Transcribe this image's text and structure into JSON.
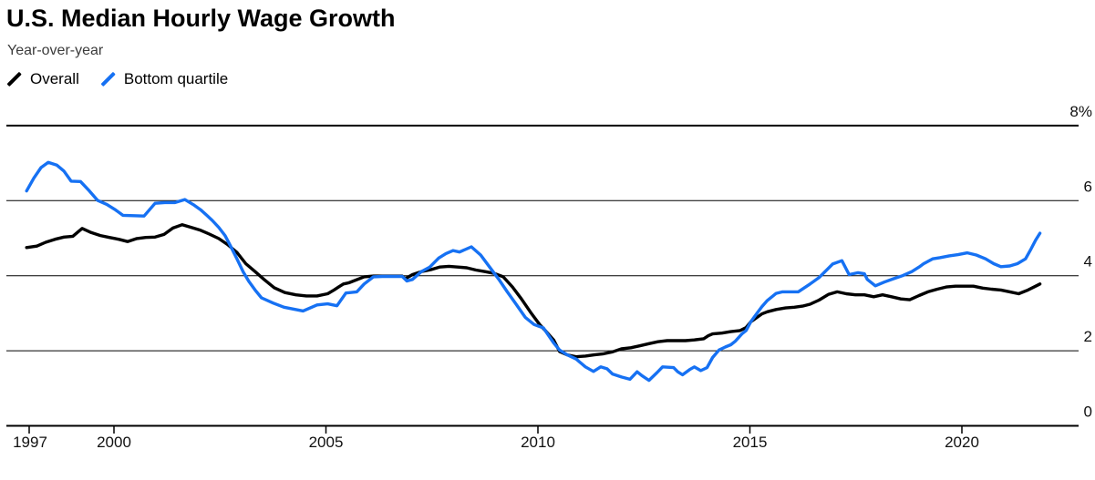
{
  "header": {
    "title": "U.S. Median Hourly Wage Growth",
    "subtitle": "Year-over-year"
  },
  "legend": [
    {
      "label": "Overall",
      "color": "#000000"
    },
    {
      "label": "Bottom quartile",
      "color": "#1671f3"
    }
  ],
  "chart_data": {
    "type": "line",
    "title": "U.S. Median Hourly Wage Growth",
    "subtitle": "Year-over-year",
    "xlabel": "",
    "ylabel": "",
    "y_unit": "%",
    "ylim": [
      0,
      8
    ],
    "x_ticks": [
      1997,
      2000,
      2005,
      2010,
      2015,
      2020
    ],
    "y_ticks": [
      0,
      2,
      4,
      6,
      8
    ],
    "y_tick_labels": [
      "0",
      "2",
      "4",
      "6",
      "8%"
    ],
    "grid": "horizontal",
    "legend_position": "top-left",
    "axis_color": "#000000",
    "series": [
      {
        "name": "Overall",
        "color": "#000000",
        "points": [
          [
            1997.94,
            4.75
          ],
          [
            1998.18,
            4.79
          ],
          [
            1998.39,
            4.89
          ],
          [
            1998.61,
            4.97
          ],
          [
            1998.82,
            5.03
          ],
          [
            1999.03,
            5.05
          ],
          [
            1999.25,
            5.26
          ],
          [
            1999.46,
            5.15
          ],
          [
            1999.68,
            5.07
          ],
          [
            1999.89,
            5.02
          ],
          [
            2000.11,
            4.97
          ],
          [
            2000.32,
            4.91
          ],
          [
            2000.54,
            4.99
          ],
          [
            2000.75,
            5.02
          ],
          [
            2000.97,
            5.03
          ],
          [
            2001.18,
            5.1
          ],
          [
            2001.39,
            5.27
          ],
          [
            2001.61,
            5.36
          ],
          [
            2001.82,
            5.29
          ],
          [
            2002.04,
            5.21
          ],
          [
            2002.25,
            5.11
          ],
          [
            2002.47,
            4.99
          ],
          [
            2002.68,
            4.83
          ],
          [
            2002.9,
            4.62
          ],
          [
            2003.11,
            4.32
          ],
          [
            2003.33,
            4.11
          ],
          [
            2003.54,
            3.9
          ],
          [
            2003.78,
            3.68
          ],
          [
            2004.03,
            3.55
          ],
          [
            2004.29,
            3.49
          ],
          [
            2004.54,
            3.46
          ],
          [
            2004.79,
            3.46
          ],
          [
            2005.04,
            3.52
          ],
          [
            2005.19,
            3.62
          ],
          [
            2005.3,
            3.7
          ],
          [
            2005.41,
            3.78
          ],
          [
            2005.54,
            3.81
          ],
          [
            2005.9,
            3.97
          ],
          [
            2006.12,
            3.99
          ],
          [
            2006.8,
            3.99
          ],
          [
            2006.87,
            3.92
          ],
          [
            2007.04,
            4.03
          ],
          [
            2007.25,
            4.11
          ],
          [
            2007.47,
            4.16
          ],
          [
            2007.68,
            4.23
          ],
          [
            2007.9,
            4.25
          ],
          [
            2008.11,
            4.23
          ],
          [
            2008.32,
            4.21
          ],
          [
            2008.54,
            4.15
          ],
          [
            2008.75,
            4.11
          ],
          [
            2008.97,
            4.06
          ],
          [
            2009.18,
            3.97
          ],
          [
            2009.4,
            3.7
          ],
          [
            2009.61,
            3.38
          ],
          [
            2009.83,
            3.02
          ],
          [
            2010.04,
            2.7
          ],
          [
            2010.19,
            2.52
          ],
          [
            2010.37,
            2.29
          ],
          [
            2010.51,
            1.98
          ],
          [
            2010.69,
            1.89
          ],
          [
            2010.9,
            1.84
          ],
          [
            2011.12,
            1.86
          ],
          [
            2011.33,
            1.89
          ],
          [
            2011.55,
            1.92
          ],
          [
            2011.76,
            1.97
          ],
          [
            2011.97,
            2.05
          ],
          [
            2012.19,
            2.08
          ],
          [
            2012.4,
            2.13
          ],
          [
            2012.62,
            2.19
          ],
          [
            2012.83,
            2.24
          ],
          [
            2013.05,
            2.27
          ],
          [
            2013.26,
            2.27
          ],
          [
            2013.48,
            2.27
          ],
          [
            2013.69,
            2.29
          ],
          [
            2013.91,
            2.32
          ],
          [
            2014.02,
            2.4
          ],
          [
            2014.12,
            2.45
          ],
          [
            2014.34,
            2.47
          ],
          [
            2014.55,
            2.51
          ],
          [
            2014.77,
            2.54
          ],
          [
            2014.91,
            2.62
          ],
          [
            2015.02,
            2.77
          ],
          [
            2015.13,
            2.86
          ],
          [
            2015.28,
            2.98
          ],
          [
            2015.41,
            3.04
          ],
          [
            2015.62,
            3.1
          ],
          [
            2015.84,
            3.14
          ],
          [
            2016.05,
            3.16
          ],
          [
            2016.24,
            3.19
          ],
          [
            2016.42,
            3.24
          ],
          [
            2016.63,
            3.35
          ],
          [
            2016.85,
            3.5
          ],
          [
            2017.06,
            3.57
          ],
          [
            2017.27,
            3.52
          ],
          [
            2017.49,
            3.49
          ],
          [
            2017.7,
            3.49
          ],
          [
            2017.92,
            3.44
          ],
          [
            2018.13,
            3.49
          ],
          [
            2018.34,
            3.44
          ],
          [
            2018.56,
            3.38
          ],
          [
            2018.77,
            3.36
          ],
          [
            2018.99,
            3.47
          ],
          [
            2019.2,
            3.57
          ],
          [
            2019.42,
            3.64
          ],
          [
            2019.63,
            3.7
          ],
          [
            2019.85,
            3.72
          ],
          [
            2020.06,
            3.72
          ],
          [
            2020.27,
            3.72
          ],
          [
            2020.49,
            3.67
          ],
          [
            2020.7,
            3.64
          ],
          [
            2020.92,
            3.62
          ],
          [
            2021.13,
            3.57
          ],
          [
            2021.34,
            3.52
          ],
          [
            2021.56,
            3.62
          ],
          [
            2021.74,
            3.72
          ],
          [
            2021.84,
            3.78
          ]
        ]
      },
      {
        "name": "Bottom quartile",
        "color": "#1671f3",
        "points": [
          [
            1997.94,
            6.26
          ],
          [
            1998.11,
            6.6
          ],
          [
            1998.28,
            6.88
          ],
          [
            1998.45,
            7.02
          ],
          [
            1998.65,
            6.95
          ],
          [
            1998.82,
            6.79
          ],
          [
            1998.99,
            6.52
          ],
          [
            1999.21,
            6.51
          ],
          [
            1999.42,
            6.26
          ],
          [
            1999.61,
            6.01
          ],
          [
            1999.83,
            5.9
          ],
          [
            2000.04,
            5.75
          ],
          [
            2000.21,
            5.61
          ],
          [
            2000.47,
            5.6
          ],
          [
            2000.71,
            5.59
          ],
          [
            2000.97,
            5.93
          ],
          [
            2001.2,
            5.95
          ],
          [
            2001.44,
            5.95
          ],
          [
            2001.67,
            6.03
          ],
          [
            2001.89,
            5.88
          ],
          [
            2002.04,
            5.76
          ],
          [
            2002.19,
            5.61
          ],
          [
            2002.32,
            5.47
          ],
          [
            2002.47,
            5.29
          ],
          [
            2002.62,
            5.07
          ],
          [
            2002.75,
            4.79
          ],
          [
            2002.9,
            4.45
          ],
          [
            2003.05,
            4.1
          ],
          [
            2003.18,
            3.85
          ],
          [
            2003.33,
            3.62
          ],
          [
            2003.48,
            3.41
          ],
          [
            2003.76,
            3.27
          ],
          [
            2004.01,
            3.16
          ],
          [
            2004.46,
            3.06
          ],
          [
            2004.79,
            3.22
          ],
          [
            2005.04,
            3.25
          ],
          [
            2005.26,
            3.2
          ],
          [
            2005.47,
            3.54
          ],
          [
            2005.73,
            3.57
          ],
          [
            2005.9,
            3.78
          ],
          [
            2006.12,
            3.97
          ],
          [
            2006.33,
            3.98
          ],
          [
            2006.8,
            3.98
          ],
          [
            2006.91,
            3.86
          ],
          [
            2007.04,
            3.9
          ],
          [
            2007.25,
            4.11
          ],
          [
            2007.45,
            4.23
          ],
          [
            2007.66,
            4.47
          ],
          [
            2007.83,
            4.59
          ],
          [
            2008.0,
            4.67
          ],
          [
            2008.15,
            4.63
          ],
          [
            2008.43,
            4.77
          ],
          [
            2008.65,
            4.55
          ],
          [
            2008.86,
            4.23
          ],
          [
            2009.08,
            3.9
          ],
          [
            2009.27,
            3.58
          ],
          [
            2009.48,
            3.25
          ],
          [
            2009.7,
            2.89
          ],
          [
            2009.91,
            2.7
          ],
          [
            2010.13,
            2.61
          ],
          [
            2010.37,
            2.21
          ],
          [
            2010.51,
            2.02
          ],
          [
            2010.69,
            1.89
          ],
          [
            2010.9,
            1.78
          ],
          [
            2011.12,
            1.57
          ],
          [
            2011.31,
            1.45
          ],
          [
            2011.48,
            1.57
          ],
          [
            2011.63,
            1.52
          ],
          [
            2011.76,
            1.38
          ],
          [
            2011.97,
            1.3
          ],
          [
            2012.17,
            1.24
          ],
          [
            2012.34,
            1.44
          ],
          [
            2012.45,
            1.34
          ],
          [
            2012.62,
            1.21
          ],
          [
            2012.81,
            1.42
          ],
          [
            2012.94,
            1.57
          ],
          [
            2013.2,
            1.55
          ],
          [
            2013.3,
            1.44
          ],
          [
            2013.41,
            1.36
          ],
          [
            2013.58,
            1.5
          ],
          [
            2013.69,
            1.57
          ],
          [
            2013.84,
            1.47
          ],
          [
            2013.99,
            1.55
          ],
          [
            2014.12,
            1.82
          ],
          [
            2014.27,
            2.02
          ],
          [
            2014.42,
            2.1
          ],
          [
            2014.55,
            2.16
          ],
          [
            2014.66,
            2.26
          ],
          [
            2014.81,
            2.45
          ],
          [
            2014.91,
            2.54
          ],
          [
            2015.02,
            2.77
          ],
          [
            2015.13,
            2.94
          ],
          [
            2015.28,
            3.17
          ],
          [
            2015.41,
            3.34
          ],
          [
            2015.52,
            3.44
          ],
          [
            2015.62,
            3.53
          ],
          [
            2015.77,
            3.57
          ],
          [
            2016.14,
            3.57
          ],
          [
            2016.42,
            3.78
          ],
          [
            2016.63,
            3.95
          ],
          [
            2016.95,
            4.31
          ],
          [
            2017.17,
            4.4
          ],
          [
            2017.34,
            4.03
          ],
          [
            2017.55,
            4.08
          ],
          [
            2017.7,
            4.05
          ],
          [
            2017.77,
            3.9
          ],
          [
            2017.96,
            3.73
          ],
          [
            2018.17,
            3.83
          ],
          [
            2018.39,
            3.92
          ],
          [
            2018.6,
            4.0
          ],
          [
            2018.82,
            4.11
          ],
          [
            2018.99,
            4.23
          ],
          [
            2019.1,
            4.32
          ],
          [
            2019.31,
            4.45
          ],
          [
            2019.48,
            4.48
          ],
          [
            2019.7,
            4.53
          ],
          [
            2019.91,
            4.56
          ],
          [
            2020.13,
            4.61
          ],
          [
            2020.34,
            4.55
          ],
          [
            2020.56,
            4.45
          ],
          [
            2020.75,
            4.32
          ],
          [
            2020.92,
            4.24
          ],
          [
            2021.13,
            4.26
          ],
          [
            2021.31,
            4.32
          ],
          [
            2021.5,
            4.45
          ],
          [
            2021.63,
            4.71
          ],
          [
            2021.74,
            4.95
          ],
          [
            2021.84,
            5.13
          ]
        ]
      }
    ]
  }
}
